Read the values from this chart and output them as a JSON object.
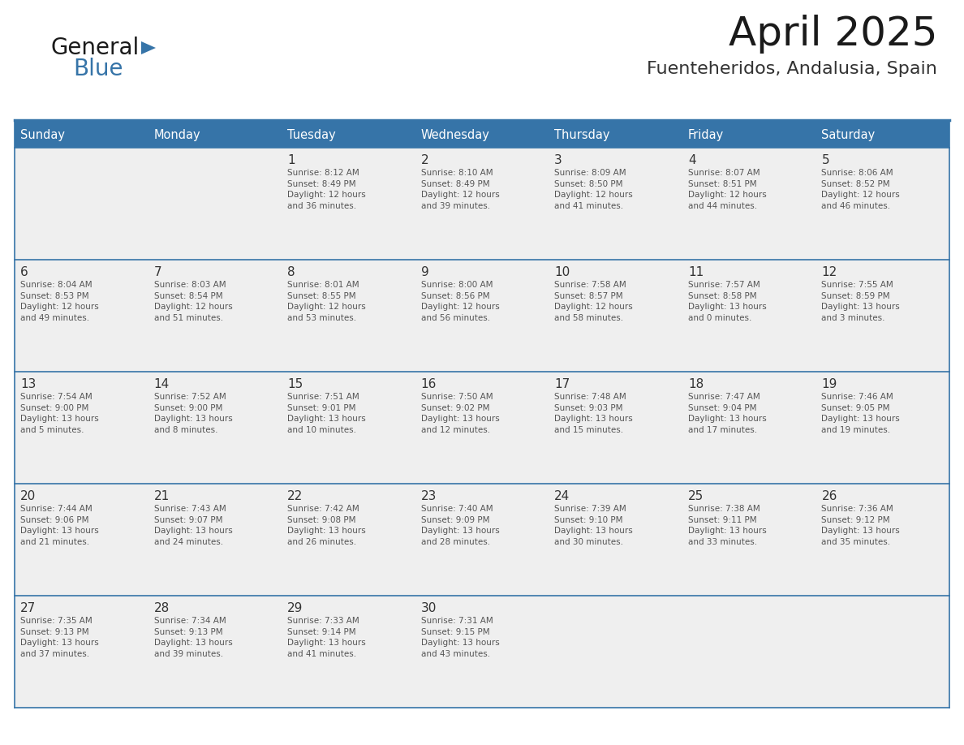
{
  "title": "April 2025",
  "subtitle": "Fuenteheridos, Andalusia, Spain",
  "header_color": "#3674a8",
  "header_text_color": "#FFFFFF",
  "cell_bg_color": "#EFEFEF",
  "cell_text_color": "#555555",
  "day_number_color": "#333333",
  "border_color": "#3674a8",
  "separator_color": "#3674a8",
  "days_of_week": [
    "Sunday",
    "Monday",
    "Tuesday",
    "Wednesday",
    "Thursday",
    "Friday",
    "Saturday"
  ],
  "weeks": [
    [
      {
        "day": "",
        "text": ""
      },
      {
        "day": "",
        "text": ""
      },
      {
        "day": "1",
        "text": "Sunrise: 8:12 AM\nSunset: 8:49 PM\nDaylight: 12 hours\nand 36 minutes."
      },
      {
        "day": "2",
        "text": "Sunrise: 8:10 AM\nSunset: 8:49 PM\nDaylight: 12 hours\nand 39 minutes."
      },
      {
        "day": "3",
        "text": "Sunrise: 8:09 AM\nSunset: 8:50 PM\nDaylight: 12 hours\nand 41 minutes."
      },
      {
        "day": "4",
        "text": "Sunrise: 8:07 AM\nSunset: 8:51 PM\nDaylight: 12 hours\nand 44 minutes."
      },
      {
        "day": "5",
        "text": "Sunrise: 8:06 AM\nSunset: 8:52 PM\nDaylight: 12 hours\nand 46 minutes."
      }
    ],
    [
      {
        "day": "6",
        "text": "Sunrise: 8:04 AM\nSunset: 8:53 PM\nDaylight: 12 hours\nand 49 minutes."
      },
      {
        "day": "7",
        "text": "Sunrise: 8:03 AM\nSunset: 8:54 PM\nDaylight: 12 hours\nand 51 minutes."
      },
      {
        "day": "8",
        "text": "Sunrise: 8:01 AM\nSunset: 8:55 PM\nDaylight: 12 hours\nand 53 minutes."
      },
      {
        "day": "9",
        "text": "Sunrise: 8:00 AM\nSunset: 8:56 PM\nDaylight: 12 hours\nand 56 minutes."
      },
      {
        "day": "10",
        "text": "Sunrise: 7:58 AM\nSunset: 8:57 PM\nDaylight: 12 hours\nand 58 minutes."
      },
      {
        "day": "11",
        "text": "Sunrise: 7:57 AM\nSunset: 8:58 PM\nDaylight: 13 hours\nand 0 minutes."
      },
      {
        "day": "12",
        "text": "Sunrise: 7:55 AM\nSunset: 8:59 PM\nDaylight: 13 hours\nand 3 minutes."
      }
    ],
    [
      {
        "day": "13",
        "text": "Sunrise: 7:54 AM\nSunset: 9:00 PM\nDaylight: 13 hours\nand 5 minutes."
      },
      {
        "day": "14",
        "text": "Sunrise: 7:52 AM\nSunset: 9:00 PM\nDaylight: 13 hours\nand 8 minutes."
      },
      {
        "day": "15",
        "text": "Sunrise: 7:51 AM\nSunset: 9:01 PM\nDaylight: 13 hours\nand 10 minutes."
      },
      {
        "day": "16",
        "text": "Sunrise: 7:50 AM\nSunset: 9:02 PM\nDaylight: 13 hours\nand 12 minutes."
      },
      {
        "day": "17",
        "text": "Sunrise: 7:48 AM\nSunset: 9:03 PM\nDaylight: 13 hours\nand 15 minutes."
      },
      {
        "day": "18",
        "text": "Sunrise: 7:47 AM\nSunset: 9:04 PM\nDaylight: 13 hours\nand 17 minutes."
      },
      {
        "day": "19",
        "text": "Sunrise: 7:46 AM\nSunset: 9:05 PM\nDaylight: 13 hours\nand 19 minutes."
      }
    ],
    [
      {
        "day": "20",
        "text": "Sunrise: 7:44 AM\nSunset: 9:06 PM\nDaylight: 13 hours\nand 21 minutes."
      },
      {
        "day": "21",
        "text": "Sunrise: 7:43 AM\nSunset: 9:07 PM\nDaylight: 13 hours\nand 24 minutes."
      },
      {
        "day": "22",
        "text": "Sunrise: 7:42 AM\nSunset: 9:08 PM\nDaylight: 13 hours\nand 26 minutes."
      },
      {
        "day": "23",
        "text": "Sunrise: 7:40 AM\nSunset: 9:09 PM\nDaylight: 13 hours\nand 28 minutes."
      },
      {
        "day": "24",
        "text": "Sunrise: 7:39 AM\nSunset: 9:10 PM\nDaylight: 13 hours\nand 30 minutes."
      },
      {
        "day": "25",
        "text": "Sunrise: 7:38 AM\nSunset: 9:11 PM\nDaylight: 13 hours\nand 33 minutes."
      },
      {
        "day": "26",
        "text": "Sunrise: 7:36 AM\nSunset: 9:12 PM\nDaylight: 13 hours\nand 35 minutes."
      }
    ],
    [
      {
        "day": "27",
        "text": "Sunrise: 7:35 AM\nSunset: 9:13 PM\nDaylight: 13 hours\nand 37 minutes."
      },
      {
        "day": "28",
        "text": "Sunrise: 7:34 AM\nSunset: 9:13 PM\nDaylight: 13 hours\nand 39 minutes."
      },
      {
        "day": "29",
        "text": "Sunrise: 7:33 AM\nSunset: 9:14 PM\nDaylight: 13 hours\nand 41 minutes."
      },
      {
        "day": "30",
        "text": "Sunrise: 7:31 AM\nSunset: 9:15 PM\nDaylight: 13 hours\nand 43 minutes."
      },
      {
        "day": "",
        "text": ""
      },
      {
        "day": "",
        "text": ""
      },
      {
        "day": "",
        "text": ""
      }
    ]
  ],
  "logo_text_general": "General",
  "logo_text_blue": "Blue",
  "logo_color_general": "#1a1a1a",
  "logo_color_blue": "#3674a8",
  "title_fontsize": 36,
  "subtitle_fontsize": 16,
  "dow_fontsize": 10.5,
  "day_num_fontsize": 11,
  "cell_text_fontsize": 7.5
}
